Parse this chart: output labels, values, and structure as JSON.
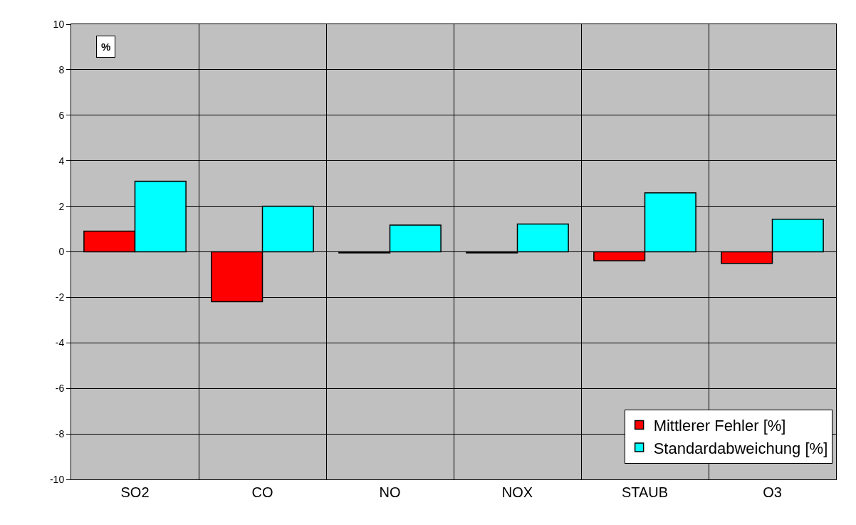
{
  "chart_data": {
    "type": "bar",
    "ylabel": "%",
    "categories": [
      "SO2",
      "CO",
      "NO",
      "NOX",
      "STAUB",
      "O3"
    ],
    "series": [
      {
        "name": "Mittlerer Fehler [%]",
        "color": "#ff0000",
        "values": [
          0.91,
          -2.19,
          -0.05,
          -0.05,
          -0.39,
          -0.51
        ]
      },
      {
        "name": "Standardabweichung [%]",
        "color": "#00ffff",
        "values": [
          3.1,
          2.0,
          1.17,
          1.22,
          2.59,
          1.43
        ]
      }
    ],
    "ylim": [
      -10,
      10
    ],
    "yticks": [
      -10,
      -8,
      -6,
      -4,
      -2,
      0,
      2,
      4,
      6,
      8,
      10
    ],
    "grid": true,
    "legend": "bottom right"
  }
}
